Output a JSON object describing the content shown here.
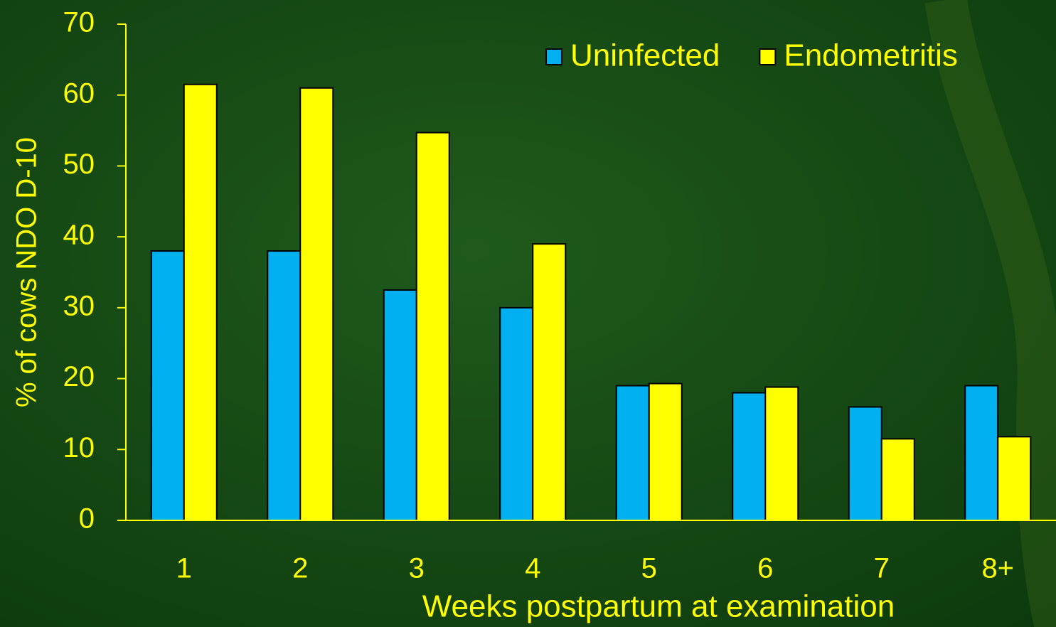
{
  "chart_data": {
    "type": "bar",
    "categories": [
      "1",
      "2",
      "3",
      "4",
      "5",
      "6",
      "7",
      "8+"
    ],
    "series": [
      {
        "name": "Uninfected",
        "color": "#00b0f0",
        "values": [
          38,
          38,
          32.5,
          30,
          19,
          18,
          16,
          19
        ]
      },
      {
        "name": "Endometritis",
        "color": "#ffff00",
        "values": [
          61.5,
          61,
          54.7,
          39,
          19.3,
          18.8,
          11.5,
          11.8
        ]
      }
    ],
    "xlabel": "Weeks postpartum at examination",
    "ylabel": "% of cows NDO D-10",
    "ylim": [
      0,
      70
    ],
    "yticks": [
      0,
      10,
      20,
      30,
      40,
      50,
      60,
      70
    ],
    "legend": "top-right"
  }
}
